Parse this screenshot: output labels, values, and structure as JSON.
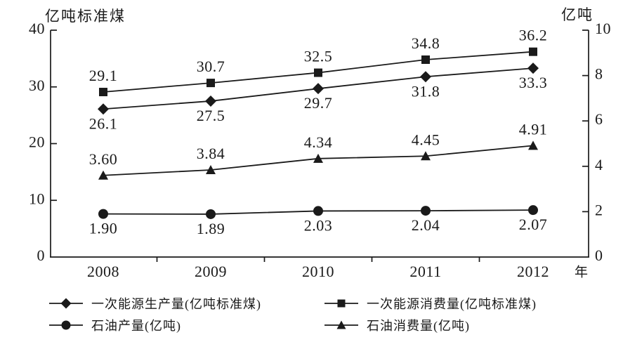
{
  "figure_name": "energy-production-consumption-line-chart",
  "colors": {
    "ink": "#1a1a1a",
    "background": "#ffffff"
  },
  "chart_data": {
    "type": "line",
    "title": "",
    "categories": [
      "2008",
      "2009",
      "2010",
      "2011",
      "2012"
    ],
    "x_unit_label": "年",
    "grid": false,
    "legend_position": "bottom",
    "left_axis": {
      "title": "亿吨标准煤",
      "min": 0,
      "max": 40,
      "tick_labels": [
        "0",
        "10",
        "20",
        "30",
        "40"
      ]
    },
    "right_axis": {
      "title": "亿吨",
      "min": 0,
      "max": 10,
      "tick_labels": [
        "0",
        "2",
        "4",
        "6",
        "8",
        "10"
      ]
    },
    "series": [
      {
        "name": "一次能源生产量(亿吨标准煤)",
        "axis": "left",
        "marker": "diamond",
        "values": [
          26.1,
          27.5,
          29.7,
          31.8,
          33.3
        ],
        "point_labels": [
          "26.1",
          "27.5",
          "29.7",
          "31.8",
          "33.3"
        ],
        "label_side": "below"
      },
      {
        "name": "一次能源消费量(亿吨标准煤)",
        "axis": "left",
        "marker": "square",
        "values": [
          29.1,
          30.7,
          32.5,
          34.8,
          36.2
        ],
        "point_labels": [
          "29.1",
          "30.7",
          "32.5",
          "34.8",
          "36.2"
        ],
        "label_side": "above"
      },
      {
        "name": "石油产量(亿吨)",
        "axis": "right",
        "marker": "circle",
        "values": [
          1.9,
          1.89,
          2.03,
          2.04,
          2.07
        ],
        "point_labels": [
          "1.90",
          "1.89",
          "2.03",
          "2.04",
          "2.07"
        ],
        "label_side": "below"
      },
      {
        "name": "石油消费量(亿吨)",
        "axis": "right",
        "marker": "triangle",
        "values": [
          3.6,
          3.84,
          4.34,
          4.45,
          4.91
        ],
        "point_labels": [
          "3.60",
          "3.84",
          "4.34",
          "4.45",
          "4.91"
        ],
        "label_side": "above"
      }
    ],
    "legend": [
      {
        "marker": "diamond",
        "label": "一次能源生产量(亿吨标准煤)"
      },
      {
        "marker": "square",
        "label": "一次能源消费量(亿吨标准煤)"
      },
      {
        "marker": "circle",
        "label": "石油产量(亿吨)"
      },
      {
        "marker": "triangle",
        "label": "石油消费量(亿吨)"
      }
    ]
  }
}
